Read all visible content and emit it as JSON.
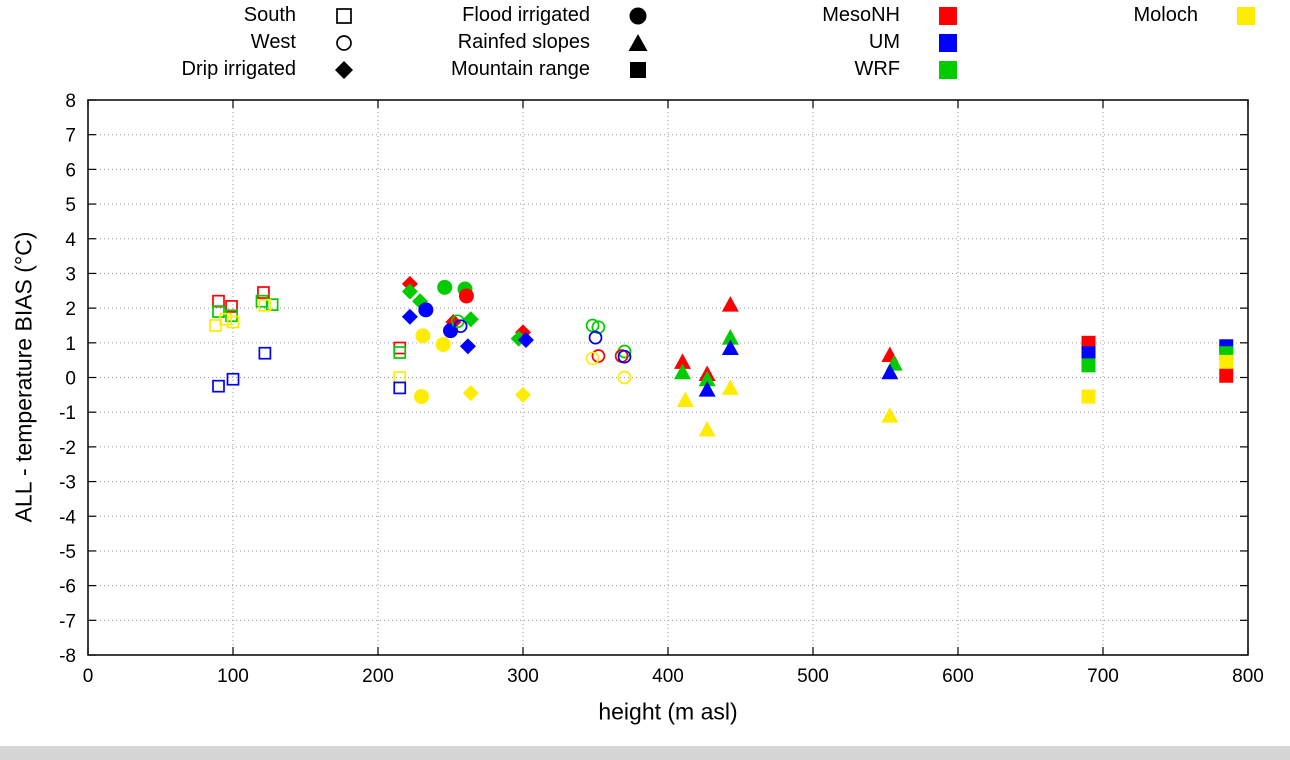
{
  "chart_data": {
    "type": "scatter",
    "title": "",
    "xlabel": "height (m asl)",
    "ylabel": "ALL - temperature BIAS (°C)",
    "xlim": [
      0,
      800
    ],
    "ylim": [
      -8,
      8
    ],
    "xticks": [
      0,
      100,
      200,
      300,
      400,
      500,
      600,
      700,
      800
    ],
    "yticks": [
      -8,
      -7,
      -6,
      -5,
      -4,
      -3,
      -2,
      -1,
      0,
      1,
      2,
      3,
      4,
      5,
      6,
      7,
      8
    ],
    "grid": "dotted",
    "legend_position": "top",
    "shape_legend": [
      {
        "label": "South",
        "shape": "open-square"
      },
      {
        "label": "West",
        "shape": "open-circle"
      },
      {
        "label": "Drip irrigated",
        "shape": "filled-diamond"
      },
      {
        "label": "Flood irrigated",
        "shape": "filled-circle"
      },
      {
        "label": "Rainfed slopes",
        "shape": "filled-triangle"
      },
      {
        "label": "Mountain range",
        "shape": "filled-square"
      }
    ],
    "color_legend": [
      {
        "label": "MesoNH",
        "color": "#ff0000"
      },
      {
        "label": "UM",
        "color": "#0000ff"
      },
      {
        "label": "WRF",
        "color": "#00cc00"
      },
      {
        "label": "Moloch",
        "color": "#ffec00"
      }
    ],
    "points": [
      {
        "x": 90,
        "y": 2.2,
        "site": "South",
        "model": "MesoNH"
      },
      {
        "x": 99,
        "y": 2.05,
        "site": "South",
        "model": "MesoNH"
      },
      {
        "x": 90,
        "y": 1.9,
        "site": "South",
        "model": "WRF"
      },
      {
        "x": 99,
        "y": 1.78,
        "site": "South",
        "model": "WRF"
      },
      {
        "x": 88,
        "y": 1.5,
        "site": "South",
        "model": "Moloch"
      },
      {
        "x": 95,
        "y": 1.68,
        "site": "South",
        "model": "Moloch"
      },
      {
        "x": 100,
        "y": 1.6,
        "site": "South",
        "model": "Moloch"
      },
      {
        "x": 90,
        "y": -0.25,
        "site": "South",
        "model": "UM"
      },
      {
        "x": 100,
        "y": -0.05,
        "site": "South",
        "model": "UM"
      },
      {
        "x": 121,
        "y": 2.45,
        "site": "South",
        "model": "MesoNH"
      },
      {
        "x": 120,
        "y": 2.2,
        "site": "South",
        "model": "WRF"
      },
      {
        "x": 127,
        "y": 2.1,
        "site": "South",
        "model": "WRF"
      },
      {
        "x": 122,
        "y": 2.08,
        "site": "South",
        "model": "Moloch"
      },
      {
        "x": 122,
        "y": 0.7,
        "site": "South",
        "model": "UM"
      },
      {
        "x": 215,
        "y": 0.85,
        "site": "South",
        "model": "MesoNH"
      },
      {
        "x": 215,
        "y": 0.72,
        "site": "South",
        "model": "WRF"
      },
      {
        "x": 215,
        "y": 0.0,
        "site": "South",
        "model": "Moloch"
      },
      {
        "x": 215,
        "y": -0.3,
        "site": "South",
        "model": "UM"
      },
      {
        "x": 222,
        "y": 2.7,
        "site": "Drip irrigated",
        "model": "MesoNH"
      },
      {
        "x": 222,
        "y": 2.48,
        "site": "Drip irrigated",
        "model": "WRF"
      },
      {
        "x": 229,
        "y": 2.2,
        "site": "Drip irrigated",
        "model": "WRF"
      },
      {
        "x": 222,
        "y": 1.75,
        "site": "Drip irrigated",
        "model": "UM"
      },
      {
        "x": 252,
        "y": 1.6,
        "site": "Drip irrigated",
        "model": "MesoNH"
      },
      {
        "x": 264,
        "y": 1.68,
        "site": "Drip irrigated",
        "model": "WRF"
      },
      {
        "x": 262,
        "y": 0.9,
        "site": "Drip irrigated",
        "model": "UM"
      },
      {
        "x": 264,
        "y": -0.45,
        "site": "Drip irrigated",
        "model": "Moloch"
      },
      {
        "x": 300,
        "y": 1.3,
        "site": "Drip irrigated",
        "model": "MesoNH"
      },
      {
        "x": 297,
        "y": 1.12,
        "site": "Drip irrigated",
        "model": "WRF"
      },
      {
        "x": 302,
        "y": 1.08,
        "site": "Drip irrigated",
        "model": "UM"
      },
      {
        "x": 300,
        "y": -0.5,
        "site": "Drip irrigated",
        "model": "Moloch"
      },
      {
        "x": 233,
        "y": 1.95,
        "site": "Flood irrigated",
        "model": "UM"
      },
      {
        "x": 246,
        "y": 2.6,
        "site": "Flood irrigated",
        "model": "WRF"
      },
      {
        "x": 260,
        "y": 2.55,
        "site": "Flood irrigated",
        "model": "WRF"
      },
      {
        "x": 261,
        "y": 2.35,
        "site": "Flood irrigated",
        "model": "MesoNH"
      },
      {
        "x": 250,
        "y": 1.35,
        "site": "Flood irrigated",
        "model": "UM"
      },
      {
        "x": 231,
        "y": 1.2,
        "site": "Flood irrigated",
        "model": "Moloch"
      },
      {
        "x": 245,
        "y": 0.95,
        "site": "Flood irrigated",
        "model": "Moloch"
      },
      {
        "x": 230,
        "y": -0.55,
        "site": "Flood irrigated",
        "model": "Moloch"
      },
      {
        "x": 255,
        "y": 1.62,
        "site": "West",
        "model": "WRF"
      },
      {
        "x": 257,
        "y": 1.48,
        "site": "West",
        "model": "UM"
      },
      {
        "x": 348,
        "y": 1.5,
        "site": "West",
        "model": "WRF"
      },
      {
        "x": 352,
        "y": 1.45,
        "site": "West",
        "model": "WRF"
      },
      {
        "x": 350,
        "y": 1.15,
        "site": "West",
        "model": "UM"
      },
      {
        "x": 352,
        "y": 0.62,
        "site": "West",
        "model": "MesoNH"
      },
      {
        "x": 348,
        "y": 0.55,
        "site": "West",
        "model": "Moloch"
      },
      {
        "x": 370,
        "y": 0.75,
        "site": "West",
        "model": "WRF"
      },
      {
        "x": 368,
        "y": 0.62,
        "site": "West",
        "model": "MesoNH"
      },
      {
        "x": 370,
        "y": 0.6,
        "site": "West",
        "model": "UM"
      },
      {
        "x": 370,
        "y": 0.0,
        "site": "West",
        "model": "Moloch"
      },
      {
        "x": 410,
        "y": 0.45,
        "site": "Rainfed slopes",
        "model": "MesoNH"
      },
      {
        "x": 410,
        "y": 0.15,
        "site": "Rainfed slopes",
        "model": "WRF"
      },
      {
        "x": 412,
        "y": -0.65,
        "site": "Rainfed slopes",
        "model": "Moloch"
      },
      {
        "x": 427,
        "y": 0.1,
        "site": "Rainfed slopes",
        "model": "MesoNH"
      },
      {
        "x": 427,
        "y": -0.05,
        "site": "Rainfed slopes",
        "model": "WRF"
      },
      {
        "x": 427,
        "y": -0.35,
        "site": "Rainfed slopes",
        "model": "UM"
      },
      {
        "x": 427,
        "y": -1.5,
        "site": "Rainfed slopes",
        "model": "Moloch"
      },
      {
        "x": 443,
        "y": 2.1,
        "site": "Rainfed slopes",
        "model": "MesoNH"
      },
      {
        "x": 443,
        "y": 1.15,
        "site": "Rainfed slopes",
        "model": "WRF"
      },
      {
        "x": 443,
        "y": 0.85,
        "site": "Rainfed slopes",
        "model": "UM"
      },
      {
        "x": 443,
        "y": -0.3,
        "site": "Rainfed slopes",
        "model": "Moloch"
      },
      {
        "x": 553,
        "y": 0.65,
        "site": "Rainfed slopes",
        "model": "MesoNH"
      },
      {
        "x": 556,
        "y": 0.4,
        "site": "Rainfed slopes",
        "model": "WRF"
      },
      {
        "x": 553,
        "y": 0.15,
        "site": "Rainfed slopes",
        "model": "UM"
      },
      {
        "x": 553,
        "y": -1.1,
        "site": "Rainfed slopes",
        "model": "Moloch"
      },
      {
        "x": 690,
        "y": 1.0,
        "site": "Mountain range",
        "model": "MesoNH"
      },
      {
        "x": 690,
        "y": 0.7,
        "site": "Mountain range",
        "model": "UM"
      },
      {
        "x": 690,
        "y": 0.35,
        "site": "Mountain range",
        "model": "WRF"
      },
      {
        "x": 690,
        "y": -0.55,
        "site": "Mountain range",
        "model": "Moloch"
      },
      {
        "x": 785,
        "y": 0.9,
        "site": "Mountain range",
        "model": "UM"
      },
      {
        "x": 785,
        "y": 0.7,
        "site": "Mountain range",
        "model": "WRF"
      },
      {
        "x": 785,
        "y": 0.45,
        "site": "Mountain range",
        "model": "Moloch"
      },
      {
        "x": 785,
        "y": 0.05,
        "site": "Mountain range",
        "model": "MesoNH"
      }
    ]
  }
}
